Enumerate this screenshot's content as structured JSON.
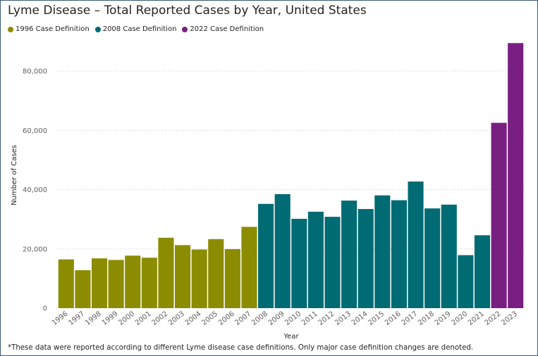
{
  "chart_data": {
    "type": "bar",
    "title": "Lyme Disease – Total Reported Cases by Year, United States",
    "xlabel": "Year",
    "ylabel": "Number of Cases",
    "ylim": [
      0,
      90000
    ],
    "yticks": [
      0,
      20000,
      40000,
      60000,
      80000
    ],
    "ytick_labels": [
      "0",
      "20,000",
      "40,000",
      "60,000",
      "80,000"
    ],
    "grid": true,
    "legend_position": "top-left",
    "categories": [
      "1996",
      "1997",
      "1998",
      "1999",
      "2000",
      "2001",
      "2002",
      "2003",
      "2004",
      "2005",
      "2006",
      "2007",
      "2008",
      "2009",
      "2010",
      "2011",
      "2012",
      "2013",
      "2014",
      "2015",
      "2016",
      "2017",
      "2018",
      "2019",
      "2020",
      "2021",
      "2022",
      "2023"
    ],
    "values": [
      16455,
      12801,
      16801,
      16273,
      17730,
      17029,
      23763,
      21273,
      19804,
      23305,
      19931,
      27444,
      35198,
      38468,
      30158,
      32552,
      30831,
      36307,
      33461,
      38069,
      36429,
      42743,
      33666,
      34945,
      17891,
      24610,
      62551,
      89470
    ],
    "series": [
      {
        "name": "1996 Case Definition",
        "color": "#8c8c00",
        "categories": [
          "1996",
          "1997",
          "1998",
          "1999",
          "2000",
          "2001",
          "2002",
          "2003",
          "2004",
          "2005",
          "2006",
          "2007"
        ]
      },
      {
        "name": "2008 Case Definition",
        "color": "#006b73",
        "categories": [
          "2008",
          "2009",
          "2010",
          "2011",
          "2012",
          "2013",
          "2014",
          "2015",
          "2016",
          "2017",
          "2018",
          "2019",
          "2020",
          "2021"
        ]
      },
      {
        "name": "2022 Case Definition",
        "color": "#7a1f82",
        "categories": [
          "2022",
          "2023"
        ]
      }
    ]
  },
  "footnote": "*These data were reported according to different Lyme disease case definitions. Only major case definition changes are denoted."
}
